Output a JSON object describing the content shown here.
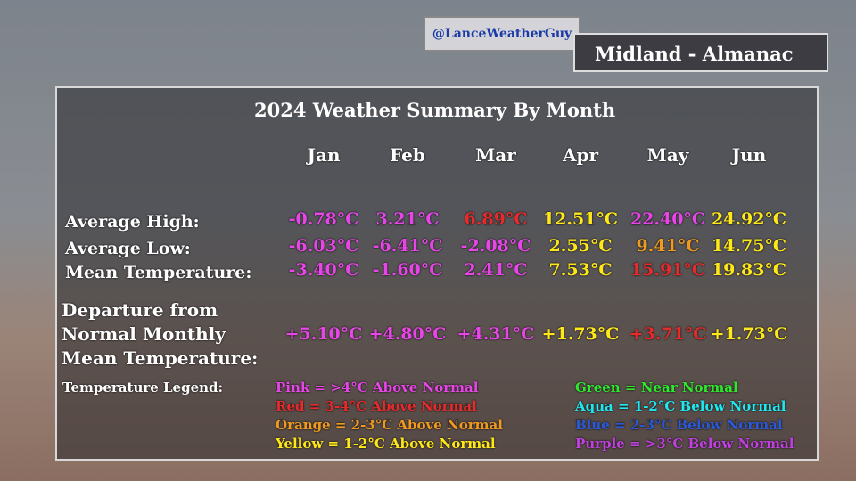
{
  "header": {
    "handle": "@LanceWeatherGuy",
    "title": "Midland - Almanac"
  },
  "summary": {
    "title": "2024 Weather Summary By Month",
    "months": [
      "Jan",
      "Feb",
      "Mar",
      "Apr",
      "May",
      "Jun"
    ],
    "rows": [
      {
        "label": "Average High:",
        "values": [
          "-0.78°C",
          "3.21°C",
          "6.89°C",
          "12.51°C",
          "22.40°C",
          "24.92°C"
        ],
        "colors": [
          "#e845e8",
          "#e845e8",
          "#e82a2a",
          "#ffe81a",
          "#e845e8",
          "#ffe81a"
        ]
      },
      {
        "label": "Average Low:",
        "values": [
          "-6.03°C",
          "-6.41°C",
          "-2.08°C",
          "2.55°C",
          "9.41°C",
          "14.75°C"
        ],
        "colors": [
          "#e845e8",
          "#e845e8",
          "#e845e8",
          "#ffe81a",
          "#f09a20",
          "#ffe81a"
        ]
      },
      {
        "label": "Mean Temperature:",
        "values": [
          "-3.40°C",
          "-1.60°C",
          "2.41°C",
          "7.53°C",
          "15.91°C",
          "19.83°C"
        ],
        "colors": [
          "#e845e8",
          "#e845e8",
          "#e845e8",
          "#ffe81a",
          "#e82a2a",
          "#ffe81a"
        ]
      }
    ],
    "departure": {
      "label": [
        "Departure from",
        "Normal Monthly",
        "Mean Temperature:"
      ],
      "values": [
        "+5.10°C",
        "+4.80°C",
        "+4.31°C",
        "+1.73°C",
        "+3.71°C",
        "+1.73°C"
      ],
      "colors": [
        "#e845e8",
        "#e845e8",
        "#e845e8",
        "#ffe81a",
        "#e82a2a",
        "#ffe81a"
      ]
    },
    "legend": {
      "title": "Temperature Legend:",
      "items": [
        {
          "text": "Pink = >4°C Above Normal",
          "color": "#e845e8"
        },
        {
          "text": "Red = 3-4°C Above Normal",
          "color": "#e82a2a"
        },
        {
          "text": "Orange = 2-3°C Above Normal",
          "color": "#f09a20"
        },
        {
          "text": "Yellow = 1-2°C Above Normal",
          "color": "#ffe81a"
        },
        {
          "text": "Green = Near Normal",
          "color": "#2ee82e"
        },
        {
          "text": "Aqua = 1-2°C Below Normal",
          "color": "#20e8f0"
        },
        {
          "text": "Blue = 2-3°C Below Normal",
          "color": "#2a5ad8"
        },
        {
          "text": "Purple = >3°C Below Normal",
          "color": "#c040e0"
        }
      ]
    }
  }
}
